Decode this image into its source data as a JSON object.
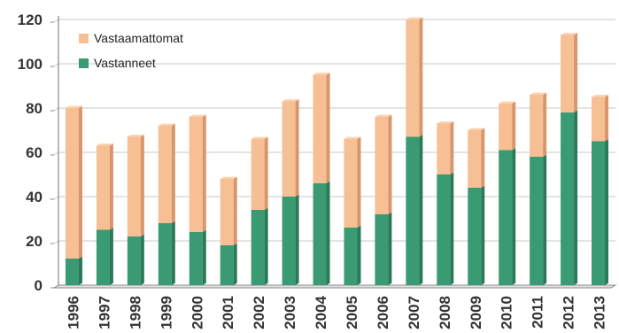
{
  "chart_data": {
    "type": "bar",
    "stacked": true,
    "categories": [
      "1996",
      "1997",
      "1998",
      "1999",
      "2000",
      "2001",
      "2002",
      "2003",
      "2004",
      "2005",
      "2006",
      "2007",
      "2008",
      "2009",
      "2010",
      "2011",
      "2012",
      "2013"
    ],
    "series": [
      {
        "name": "Vastanneet",
        "values": [
          12,
          25,
          22,
          28,
          24,
          18,
          34,
          40,
          46,
          26,
          32,
          67,
          50,
          44,
          61,
          58,
          78,
          65
        ]
      },
      {
        "name": "Vastaamattomat",
        "values": [
          68,
          38,
          45,
          44,
          52,
          30,
          32,
          43,
          49,
          40,
          44,
          53,
          23,
          26,
          21,
          28,
          35,
          20
        ]
      }
    ],
    "ylim": [
      0,
      120
    ],
    "yticks": [
      0,
      20,
      40,
      60,
      80,
      100,
      120
    ],
    "grid": true,
    "legend": "top-left",
    "colors": {
      "Vastanneet": "#3a9a73",
      "Vastanneet_side": "#2a7a58",
      "Vastanneet_top": "#4fb88a",
      "Vastaamattomat": "#f6bf94",
      "Vastaamattomat_side": "#d9966a",
      "Vastaamattomat_top": "#fad2b1",
      "gridline": "#c8c8c8",
      "axis": "#8a8a8a"
    }
  }
}
